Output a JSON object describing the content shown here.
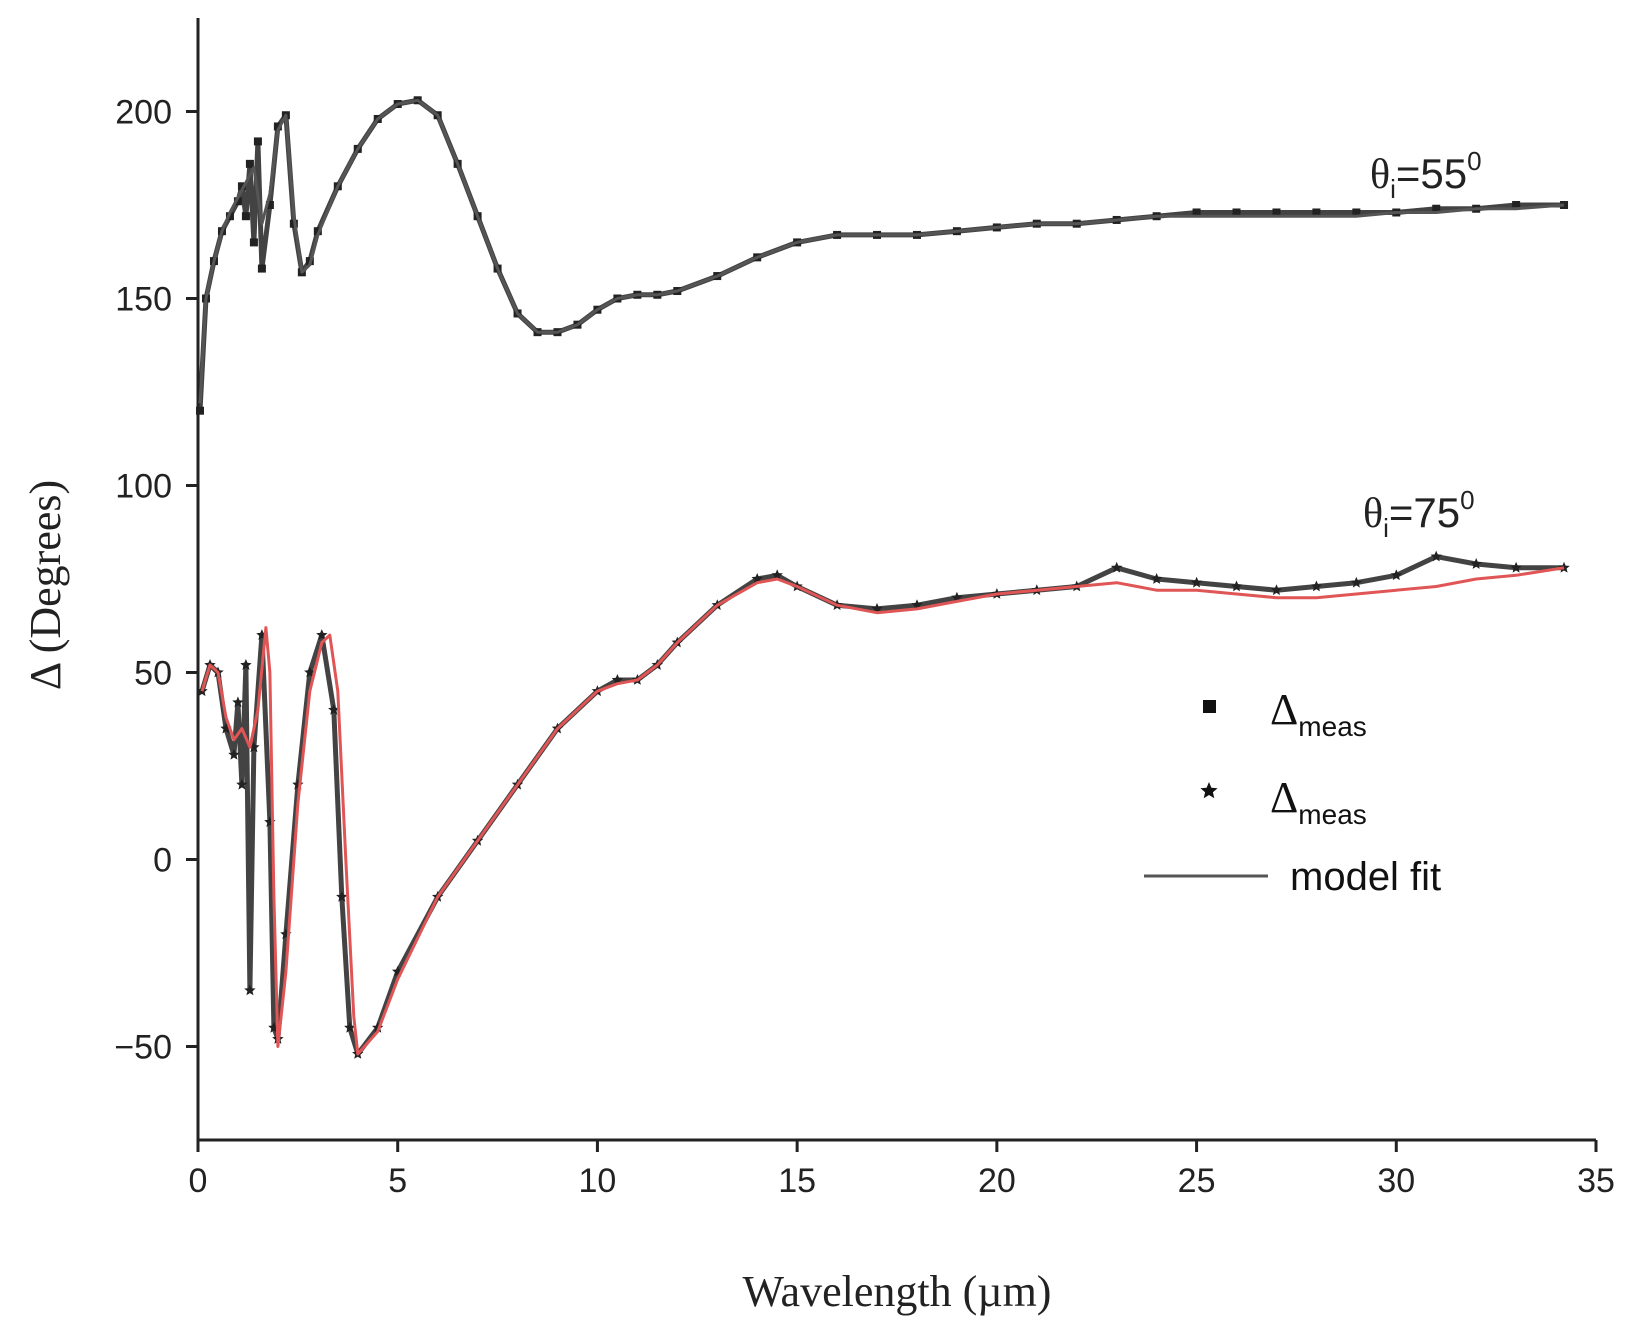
{
  "chart_data": {
    "type": "line",
    "title": "",
    "xlabel": "Wavelength (µm)",
    "ylabel": "Δ (Degrees)",
    "xlim": [
      0,
      35
    ],
    "ylim": [
      -75,
      225
    ],
    "xticks": [
      0,
      5,
      10,
      15,
      20,
      25,
      30,
      35
    ],
    "yticks": [
      -50,
      0,
      50,
      100,
      150,
      200
    ],
    "xtick_labels": [
      "0",
      "5",
      "10",
      "15",
      "20",
      "25",
      "30",
      "35"
    ],
    "ytick_labels": [
      "-50",
      "0",
      "50",
      "100",
      "150",
      "200"
    ],
    "grid": false,
    "annotations": [
      {
        "theta_prefix": "θ",
        "sub": "i",
        "eq": "=55",
        "sup": "0",
        "x": 32.5,
        "y": 177
      },
      {
        "theta_prefix": "θ",
        "sub": "i",
        "eq": "=75",
        "sup": "0",
        "x": 32.5,
        "y": 83
      }
    ],
    "legend": {
      "position": "center-right",
      "entries": [
        {
          "marker": "square",
          "label_main": "Δ",
          "label_sub": "meas"
        },
        {
          "marker": "star",
          "label_main": "Δ",
          "label_sub": "meas"
        },
        {
          "marker": "line",
          "label": "model fit"
        }
      ]
    },
    "series": [
      {
        "name": "Δmeas (θi=55°)",
        "kind": "markers",
        "marker": "square",
        "color": "#222222",
        "x": [
          0.05,
          0.2,
          0.4,
          0.6,
          0.8,
          1.0,
          1.1,
          1.2,
          1.3,
          1.4,
          1.5,
          1.6,
          1.8,
          2.0,
          2.2,
          2.4,
          2.6,
          2.8,
          3.0,
          3.5,
          4.0,
          4.5,
          5.0,
          5.5,
          6.0,
          6.5,
          7.0,
          7.5,
          8.0,
          8.5,
          9.0,
          9.5,
          10.0,
          10.5,
          11.0,
          11.5,
          12.0,
          13.0,
          14.0,
          15.0,
          16.0,
          17.0,
          18.0,
          19.0,
          20.0,
          21.0,
          22.0,
          23.0,
          24.0,
          25.0,
          26.0,
          27.0,
          28.0,
          29.0,
          30.0,
          31.0,
          32.0,
          33.0,
          34.2
        ],
        "y": [
          120,
          150,
          160,
          168,
          172,
          176,
          180,
          172,
          186,
          165,
          192,
          158,
          175,
          196,
          199,
          170,
          157,
          160,
          168,
          180,
          190,
          198,
          202,
          203,
          199,
          186,
          172,
          158,
          146,
          141,
          141,
          143,
          147,
          150,
          151,
          151,
          152,
          156,
          161,
          165,
          167,
          167,
          167,
          168,
          169,
          170,
          170,
          171,
          172,
          173,
          173,
          173,
          173,
          173,
          173,
          174,
          174,
          175,
          175
        ]
      },
      {
        "name": "model fit (θi=55°)",
        "kind": "line",
        "color": "#555555",
        "x": [
          0.05,
          0.2,
          0.4,
          0.6,
          0.8,
          1.0,
          1.2,
          1.4,
          1.6,
          1.8,
          2.0,
          2.2,
          2.4,
          2.6,
          2.8,
          3.0,
          3.5,
          4.0,
          4.5,
          5.0,
          5.5,
          6.0,
          6.5,
          7.0,
          7.5,
          8.0,
          8.5,
          9.0,
          9.5,
          10.0,
          10.5,
          11.0,
          11.5,
          12.0,
          13.0,
          14.0,
          15.0,
          16.0,
          17.0,
          18.0,
          19.0,
          20.0,
          21.0,
          22.0,
          23.0,
          24.0,
          25.0,
          26.0,
          27.0,
          28.0,
          29.0,
          30.0,
          31.0,
          32.0,
          33.0,
          34.2
        ],
        "y": [
          122,
          150,
          160,
          168,
          173,
          177,
          181,
          185,
          170,
          178,
          195,
          199,
          172,
          157,
          159,
          167,
          180,
          190,
          198,
          202,
          203,
          199,
          186,
          172,
          158,
          146,
          141,
          141,
          143,
          147,
          150,
          151,
          151,
          152,
          156,
          161,
          165,
          167,
          167,
          167,
          168,
          169,
          170,
          170,
          171,
          172,
          172,
          172,
          172,
          172,
          172,
          173,
          173,
          174,
          174,
          175
        ]
      },
      {
        "name": "Δmeas (θi=75°)",
        "kind": "markers",
        "marker": "star",
        "color": "#222222",
        "x": [
          0.1,
          0.3,
          0.5,
          0.7,
          0.9,
          1.0,
          1.1,
          1.2,
          1.3,
          1.4,
          1.6,
          1.8,
          1.9,
          2.0,
          2.2,
          2.5,
          2.8,
          3.1,
          3.4,
          3.6,
          3.8,
          4.0,
          4.5,
          5.0,
          6.0,
          7.0,
          8.0,
          9.0,
          10.0,
          10.5,
          11.0,
          11.5,
          12.0,
          13.0,
          14.0,
          14.5,
          15.0,
          16.0,
          17.0,
          18.0,
          19.0,
          20.0,
          21.0,
          22.0,
          23.0,
          24.0,
          25.0,
          26.0,
          27.0,
          28.0,
          29.0,
          30.0,
          31.0,
          32.0,
          33.0,
          34.2
        ],
        "y": [
          45,
          52,
          50,
          35,
          28,
          42,
          20,
          52,
          -35,
          30,
          60,
          10,
          -45,
          -48,
          -20,
          20,
          50,
          60,
          40,
          -10,
          -45,
          -52,
          -45,
          -30,
          -10,
          5,
          20,
          35,
          45,
          48,
          48,
          52,
          58,
          68,
          75,
          76,
          73,
          68,
          67,
          68,
          70,
          71,
          72,
          73,
          78,
          75,
          74,
          73,
          72,
          73,
          74,
          76,
          81,
          79,
          78,
          78
        ]
      },
      {
        "name": "model fit (θi=75°)",
        "kind": "line",
        "color": "#e05555",
        "x": [
          0.1,
          0.3,
          0.5,
          0.7,
          0.9,
          1.1,
          1.3,
          1.5,
          1.7,
          1.8,
          1.9,
          2.0,
          2.2,
          2.5,
          2.8,
          3.1,
          3.3,
          3.5,
          3.7,
          3.9,
          4.0,
          4.5,
          5.0,
          6.0,
          7.0,
          8.0,
          9.0,
          10.0,
          10.5,
          11.0,
          11.5,
          12.0,
          13.0,
          14.0,
          14.5,
          15.0,
          16.0,
          17.0,
          18.0,
          19.0,
          20.0,
          21.0,
          22.0,
          23.0,
          24.0,
          25.0,
          26.0,
          27.0,
          28.0,
          29.0,
          30.0,
          31.0,
          32.0,
          33.0,
          34.2
        ],
        "y": [
          45,
          52,
          50,
          38,
          32,
          35,
          30,
          40,
          62,
          50,
          -10,
          -50,
          -30,
          15,
          45,
          58,
          60,
          45,
          0,
          -42,
          -52,
          -46,
          -32,
          -10,
          5,
          20,
          35,
          45,
          47,
          48,
          52,
          58,
          68,
          74,
          75,
          73,
          68,
          66,
          67,
          69,
          71,
          72,
          73,
          74,
          72,
          72,
          71,
          70,
          70,
          71,
          72,
          73,
          75,
          76,
          78
        ]
      }
    ]
  }
}
